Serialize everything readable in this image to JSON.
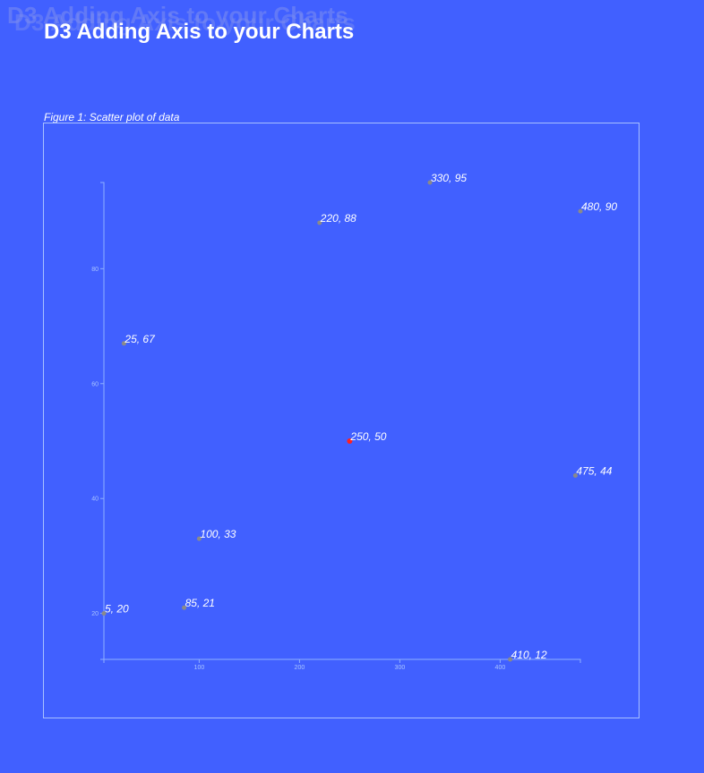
{
  "page": {
    "title": "D3 Adding Axis to your Charts",
    "caption": "Figure 1: Scatter plot of data"
  },
  "chart_data": {
    "type": "scatter",
    "title": "",
    "xlabel": "",
    "ylabel": "",
    "xlim": [
      5,
      480
    ],
    "ylim": [
      12,
      95
    ],
    "x_ticks": [
      100,
      200,
      300,
      400
    ],
    "y_ticks": [
      20,
      40,
      60,
      80
    ],
    "grid": false,
    "points": [
      {
        "x": 5,
        "y": 20,
        "label": "5, 20"
      },
      {
        "x": 480,
        "y": 90,
        "label": "480, 90"
      },
      {
        "x": 250,
        "y": 50,
        "label": "250, 50",
        "highlight": true
      },
      {
        "x": 100,
        "y": 33,
        "label": "100, 33"
      },
      {
        "x": 330,
        "y": 95,
        "label": "330, 95"
      },
      {
        "x": 410,
        "y": 12,
        "label": "410, 12"
      },
      {
        "x": 475,
        "y": 44,
        "label": "475, 44"
      },
      {
        "x": 25,
        "y": 67,
        "label": "25, 67"
      },
      {
        "x": 85,
        "y": 21,
        "label": "85, 21"
      },
      {
        "x": 220,
        "y": 88,
        "label": "220, 88"
      }
    ],
    "colors": {
      "point": "#8a8a8a",
      "highlight": "#ff2020",
      "axis": "#8fb0ff",
      "label": "#ffffff"
    }
  }
}
